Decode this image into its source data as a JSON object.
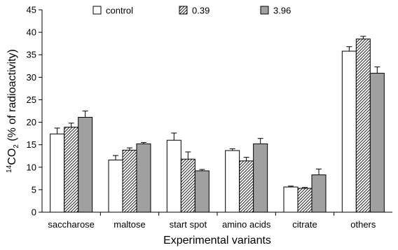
{
  "chart_data": {
    "type": "bar",
    "title": "",
    "xlabel": "Experimental variants",
    "ylabel_prefix": "14",
    "ylabel_main": "CO",
    "ylabel_sub": "2",
    "ylabel_rest": " (% of radioactivity)",
    "ylim": [
      0,
      45
    ],
    "yticks": [
      0,
      5,
      10,
      15,
      20,
      25,
      30,
      35,
      40,
      45
    ],
    "categories": [
      "saccharose",
      "maltose",
      "start spot",
      "amino acids",
      "citrate",
      "others"
    ],
    "series": [
      {
        "name": "control",
        "color": "#ffffff",
        "pattern": "solid",
        "values": [
          17.4,
          11.6,
          16.0,
          13.7,
          5.6,
          35.8
        ],
        "errors": [
          1.3,
          1.0,
          1.6,
          0.4,
          0.2,
          1.0
        ]
      },
      {
        "name": "0.39",
        "color": "#555555",
        "pattern": "hatched",
        "values": [
          18.9,
          13.8,
          11.8,
          11.4,
          5.3,
          38.5
        ],
        "errors": [
          0.9,
          0.5,
          1.6,
          0.8,
          0.2,
          0.6
        ]
      },
      {
        "name": "3.96",
        "color": "#a0a0a0",
        "pattern": "solid",
        "values": [
          21.1,
          15.2,
          9.2,
          15.2,
          8.3,
          30.9
        ],
        "errors": [
          1.4,
          0.3,
          0.3,
          1.2,
          1.3,
          1.4
        ]
      }
    ],
    "legend_position": "top",
    "grid": false
  }
}
